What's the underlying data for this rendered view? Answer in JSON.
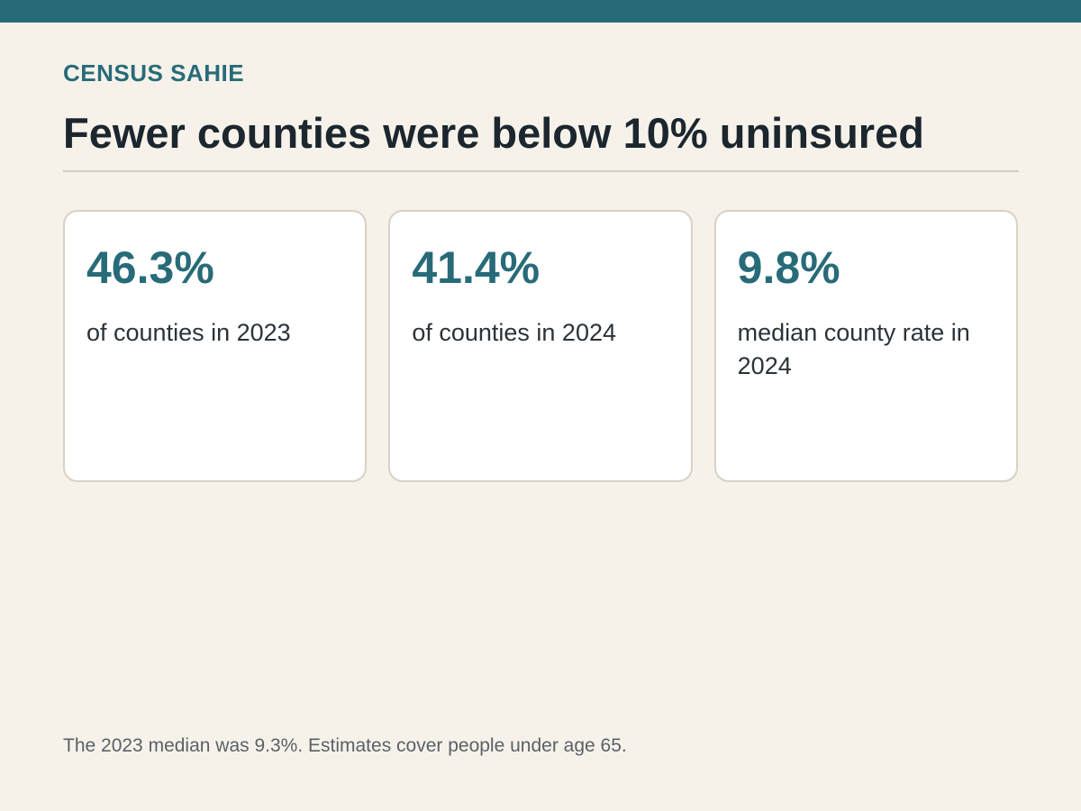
{
  "header": {
    "kicker": "CENSUS SAHIE",
    "title": "Fewer counties were below 10% uninsured"
  },
  "cards": [
    {
      "value": "46.3%",
      "label": "of counties in 2023"
    },
    {
      "value": "41.4%",
      "label": "of counties in 2024"
    },
    {
      "value": "9.8%",
      "label": "median county rate in 2024"
    }
  ],
  "footnote": "The 2023 median was 9.3%. Estimates cover people under age 65.",
  "colors": {
    "accent": "#286b78",
    "background": "#f6f2ea",
    "card_border": "#d9d1c4",
    "title_text": "#1c262e"
  }
}
